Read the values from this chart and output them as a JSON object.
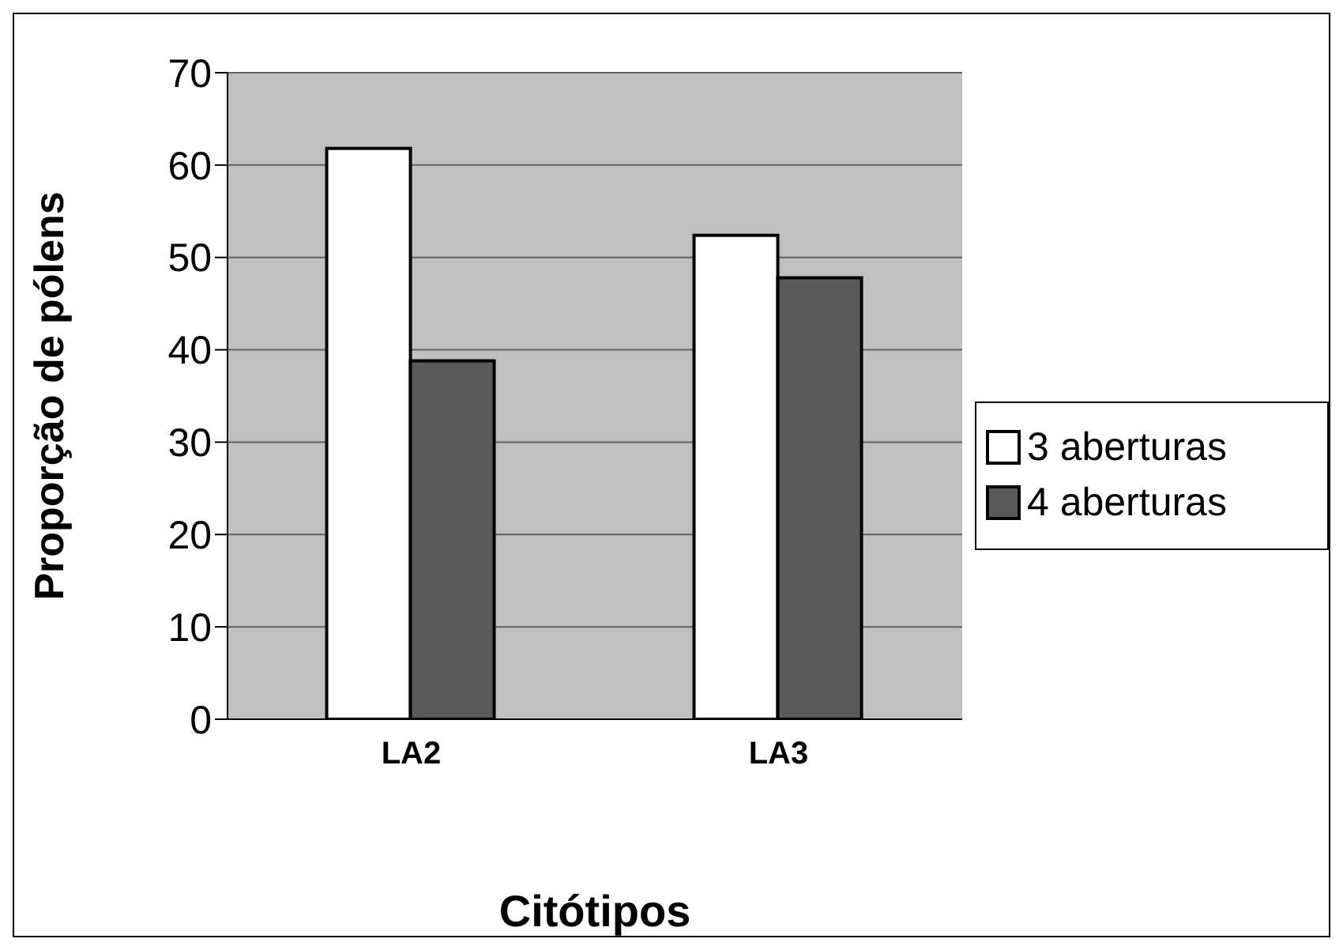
{
  "chart_data": {
    "type": "bar",
    "xlabel": "Citótipos",
    "ylabel": "Proporção de pólens",
    "categories": [
      "LA2",
      "LA3"
    ],
    "series": [
      {
        "name": "3 aberturas",
        "color": "#ffffff",
        "values": [
          61.8,
          52.4
        ]
      },
      {
        "name": "4 aberturas",
        "color": "#5a5a5a",
        "values": [
          38.8,
          47.8
        ]
      }
    ],
    "ylim": [
      0,
      70
    ],
    "yticks": [
      0,
      10,
      20,
      30,
      40,
      50,
      60,
      70
    ],
    "grid": "y",
    "legend": "right"
  }
}
